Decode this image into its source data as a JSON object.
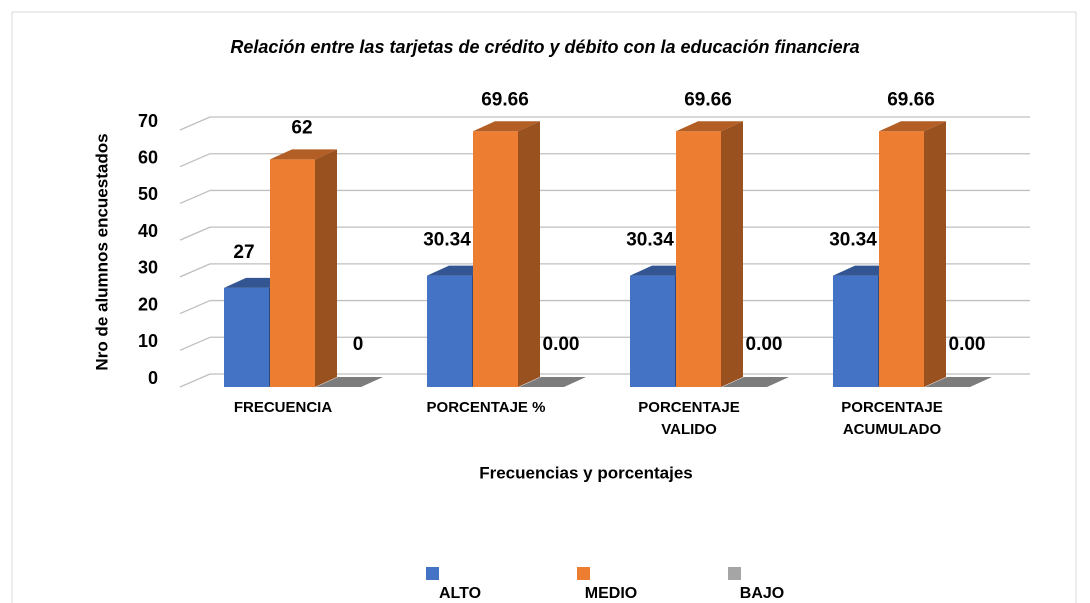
{
  "chart_data": {
    "type": "bar3d",
    "title": "Relación entre las tarjetas de crédito y débito con la educación financiera",
    "x_label": "Frecuencias y porcentajes",
    "y_label": "Nro de alumnos encuestados",
    "categories": [
      "FRECUENCIA",
      "PORCENTAJE %",
      "PORCENTAJE VALIDO",
      "PORCENTAJE ACUMULADO"
    ],
    "series": [
      {
        "name": "ALTO",
        "color": "#4472c4",
        "values": [
          27,
          30.34,
          30.34,
          30.34
        ],
        "value_labels": [
          "27",
          "30.34",
          "30.34",
          "30.34"
        ]
      },
      {
        "name": "MEDIO",
        "color": "#ed7d31",
        "values": [
          62,
          69.66,
          69.66,
          69.66
        ],
        "value_labels": [
          "62",
          "69.66",
          "69.66",
          "69.66"
        ]
      },
      {
        "name": "BAJO",
        "color": "#a5a5a5",
        "values": [
          0,
          0,
          0,
          0
        ],
        "value_labels": [
          "0",
          "0.00",
          "0.00",
          "0.00"
        ]
      }
    ],
    "ylim": [
      0,
      70
    ],
    "yticks": [
      0,
      10,
      20,
      30,
      40,
      50,
      60,
      70
    ],
    "grid": true,
    "legend": "bottom"
  }
}
